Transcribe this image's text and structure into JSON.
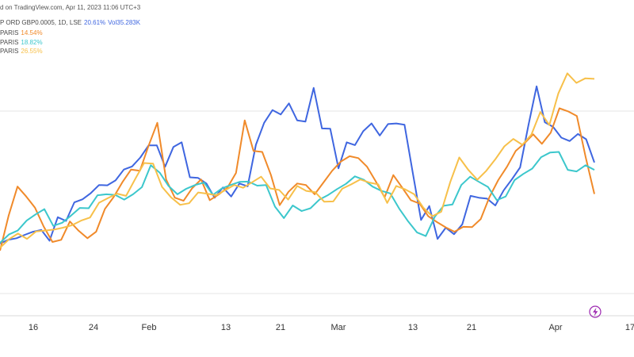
{
  "header": {
    "source_text": "d on TradingView.com, Apr 11, 2023 11:06 UTC+3"
  },
  "legend": [
    {
      "label": "P ORD GBP0.0005, 1D, LSE",
      "value": "20.61%",
      "extra": "Vol35.283K",
      "color": "#3f66e0"
    },
    {
      "label": "PARIS",
      "value": "14.54%",
      "color": "#f08a2a"
    },
    {
      "label": "PARIS",
      "value": "18.82%",
      "color": "#3cc7cc"
    },
    {
      "label": "PARIS",
      "value": "26.55%",
      "color": "#f7c04a"
    }
  ],
  "lightning_icon": "lightning-icon",
  "chart_data": {
    "type": "line",
    "ylim": [
      -0.5,
      0.5
    ],
    "grid": true,
    "xticks": [
      "16",
      "24",
      "Feb",
      "13",
      "21",
      "Mar",
      "13",
      "21",
      "Apr",
      "17"
    ],
    "series": [
      {
        "color": "#3f66e0",
        "values": [
          -0.287,
          -0.275,
          -0.27,
          -0.259,
          -0.249,
          -0.243,
          -0.278,
          -0.202,
          -0.214,
          -0.154,
          -0.144,
          -0.124,
          -0.098,
          -0.099,
          -0.083,
          -0.048,
          -0.038,
          -0.009,
          0.03,
          0.03,
          -0.039,
          0.025,
          0.04,
          -0.073,
          -0.075,
          -0.093,
          -0.139,
          -0.106,
          -0.135,
          -0.093,
          -0.102,
          0.032,
          0.103,
          0.144,
          0.13,
          0.166,
          0.111,
          0.107,
          0.216,
          0.085,
          0.084,
          -0.044,
          0.04,
          0.031,
          0.076,
          0.101,
          0.062,
          0.099,
          0.101,
          0.097,
          -0.058,
          -0.211,
          -0.166,
          -0.272,
          -0.236,
          -0.257,
          -0.225,
          -0.133,
          -0.139,
          -0.142,
          -0.164,
          -0.116,
          -0.08,
          -0.041,
          0.094,
          0.221,
          0.105,
          0.09,
          0.055,
          0.044,
          0.067,
          0.05,
          -0.025
        ]
      },
      {
        "color": "#f08a2a",
        "values": [
          -0.31,
          -0.196,
          -0.103,
          -0.135,
          -0.171,
          -0.232,
          -0.282,
          -0.275,
          -0.216,
          -0.246,
          -0.27,
          -0.249,
          -0.175,
          -0.137,
          -0.089,
          -0.048,
          -0.052,
          0.029,
          0.103,
          -0.08,
          -0.139,
          -0.149,
          -0.108,
          -0.08,
          -0.147,
          -0.129,
          -0.107,
          -0.059,
          0.111,
          0.012,
          0.009,
          -0.066,
          -0.163,
          -0.12,
          -0.093,
          -0.098,
          -0.128,
          -0.09,
          -0.052,
          -0.022,
          -0.005,
          -0.011,
          -0.039,
          -0.087,
          -0.138,
          -0.066,
          -0.106,
          -0.147,
          -0.158,
          -0.199,
          -0.218,
          -0.235,
          -0.249,
          -0.233,
          -0.234,
          -0.208,
          -0.137,
          -0.082,
          -0.039,
          0.012,
          0.037,
          0.066,
          0.035,
          0.071,
          0.15,
          0.14,
          0.125,
          -0.008,
          -0.127
        ]
      },
      {
        "color": "#3cc7cc",
        "values": [
          -0.285,
          -0.258,
          -0.245,
          -0.213,
          -0.193,
          -0.176,
          -0.23,
          -0.22,
          -0.197,
          -0.172,
          -0.173,
          -0.131,
          -0.128,
          -0.13,
          -0.145,
          -0.128,
          -0.105,
          -0.034,
          -0.058,
          -0.101,
          -0.128,
          -0.11,
          -0.098,
          -0.09,
          -0.13,
          -0.109,
          -0.098,
          -0.088,
          -0.087,
          -0.1,
          -0.098,
          -0.168,
          -0.205,
          -0.164,
          -0.182,
          -0.173,
          -0.145,
          -0.13,
          -0.111,
          -0.094,
          -0.07,
          -0.081,
          -0.103,
          -0.117,
          -0.125,
          -0.174,
          -0.215,
          -0.251,
          -0.263,
          -0.201,
          -0.165,
          -0.161,
          -0.098,
          -0.071,
          -0.088,
          -0.104,
          -0.147,
          -0.135,
          -0.082,
          -0.062,
          -0.045,
          -0.008,
          0.007,
          0.009,
          -0.049,
          -0.054,
          -0.034,
          -0.049
        ]
      },
      {
        "color": "#f7c04a",
        "values": [
          -0.301,
          -0.273,
          -0.255,
          -0.272,
          -0.248,
          -0.245,
          -0.242,
          -0.236,
          -0.228,
          -0.213,
          -0.203,
          -0.155,
          -0.14,
          -0.126,
          -0.133,
          -0.079,
          -0.027,
          -0.029,
          -0.104,
          -0.138,
          -0.162,
          -0.157,
          -0.122,
          -0.126,
          -0.131,
          -0.115,
          -0.098,
          -0.107,
          -0.089,
          -0.071,
          -0.109,
          -0.114,
          -0.145,
          -0.101,
          -0.117,
          -0.121,
          -0.152,
          -0.151,
          -0.11,
          -0.096,
          -0.08,
          -0.09,
          -0.096,
          -0.156,
          -0.101,
          -0.112,
          -0.128,
          -0.171,
          -0.199,
          -0.184,
          -0.088,
          -0.009,
          -0.049,
          -0.081,
          -0.052,
          -0.015,
          0.027,
          0.051,
          0.032,
          0.065,
          0.138,
          0.096,
          0.198,
          0.263,
          0.232,
          0.247,
          0.245
        ]
      }
    ]
  }
}
